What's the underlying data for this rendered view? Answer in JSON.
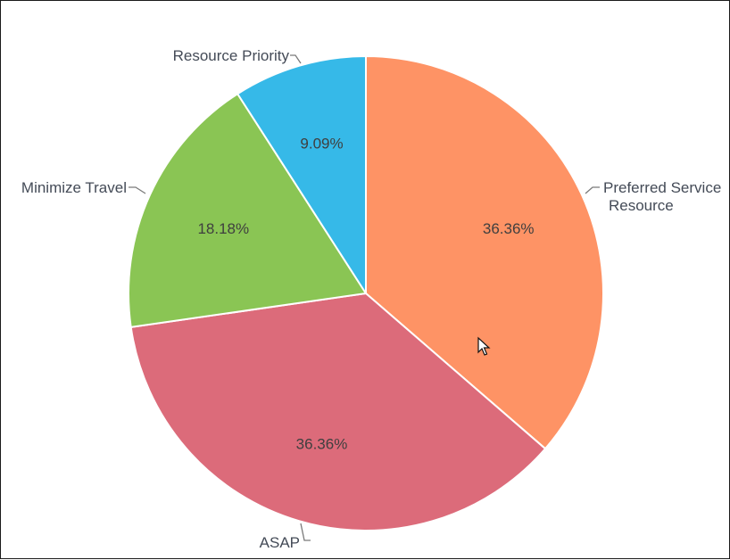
{
  "chart_data": {
    "type": "pie",
    "slices": [
      {
        "label": "Preferred Service Resource",
        "label_lines": [
          "Preferred Service",
          "Resource"
        ],
        "value": 36.36,
        "value_label": "36.36%",
        "color": "#fe9365"
      },
      {
        "label": "ASAP",
        "label_lines": [
          "ASAP"
        ],
        "value": 36.36,
        "value_label": "36.36%",
        "color": "#dc6b7a"
      },
      {
        "label": "Minimize Travel",
        "label_lines": [
          "Minimize Travel"
        ],
        "value": 18.18,
        "value_label": "18.18%",
        "color": "#8ac554"
      },
      {
        "label": "Resource Priority",
        "label_lines": [
          "Resource Priority"
        ],
        "value": 9.09,
        "value_label": "9.09%",
        "color": "#36b9e8"
      }
    ],
    "start_angle": "12 o'clock",
    "direction": "clockwise"
  },
  "colors": {
    "slice_border": "#ffffff",
    "label_text": "#444b57",
    "percent_text": "#3f3f3f",
    "leader_line": "#7a7a7a"
  },
  "pointer": {
    "icon": "mouse-pointer-icon"
  }
}
